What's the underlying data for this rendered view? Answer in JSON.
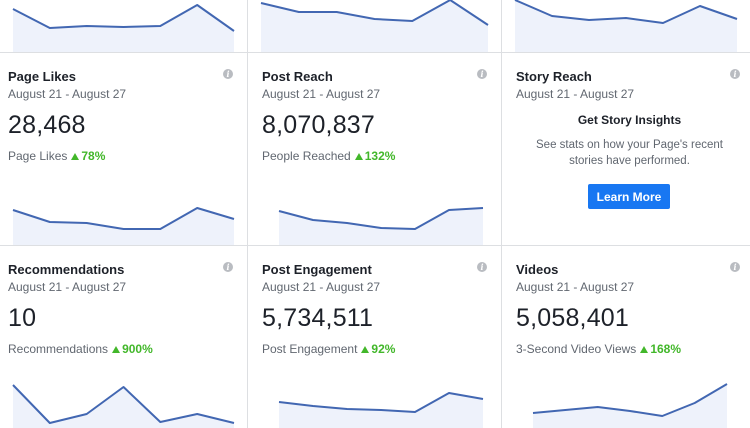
{
  "top_row_sparklines": [
    {
      "points": [
        9,
        28,
        26,
        27,
        26,
        5,
        31
      ]
    },
    {
      "points": [
        3,
        12,
        12,
        19,
        21,
        0,
        25
      ]
    },
    {
      "points": [
        0,
        16,
        20,
        18,
        23,
        6,
        19
      ]
    }
  ],
  "cards": [
    {
      "title": "Page Likes",
      "date_range": "August 21 - August 27",
      "value": "28,468",
      "metric_label": "Page Likes",
      "change": "78%",
      "sparkline": [
        21,
        33,
        34,
        40,
        40,
        19,
        30
      ]
    },
    {
      "title": "Post Reach",
      "date_range": "August 21 - August 27",
      "value": "8,070,837",
      "metric_label": "People Reached",
      "change": "132%",
      "sparkline": [
        22,
        31,
        34,
        39,
        40,
        21,
        19
      ]
    },
    {
      "title": "Story Reach",
      "date_range": "August 21 - August 27",
      "story_heading": "Get Story Insights",
      "story_description": "See stats on how your Page's recent stories have performed.",
      "button_label": "Learn More"
    },
    {
      "title": "Recommendations",
      "date_range": "August 21 - August 27",
      "value": "10",
      "metric_label": "Recommendations",
      "change": "900%",
      "sparkline": [
        19,
        57,
        48,
        21,
        56,
        48,
        57
      ]
    },
    {
      "title": "Post Engagement",
      "date_range": "August 21 - August 27",
      "value": "5,734,511",
      "metric_label": "Post Engagement",
      "change": "92%",
      "sparkline": [
        36,
        40,
        43,
        44,
        46,
        27,
        33
      ]
    },
    {
      "title": "Videos",
      "date_range": "August 21 - August 27",
      "value": "5,058,401",
      "metric_label": "3-Second Video Views",
      "change": "168%",
      "sparkline": [
        47,
        44,
        41,
        45,
        50,
        37,
        18
      ]
    }
  ],
  "colors": {
    "line": "#4267b2",
    "fill": "#eef2fb",
    "positive": "#42b72a",
    "button": "#1877f2",
    "divider": "#dddfe2"
  },
  "icons": {
    "info": "info-icon",
    "up": "triangle-up-icon"
  }
}
